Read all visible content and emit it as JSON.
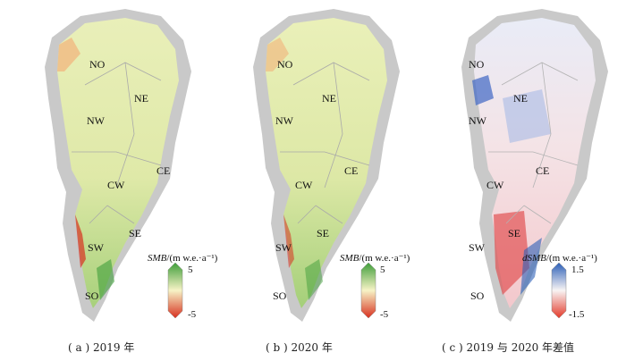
{
  "panels": [
    {
      "caption": "( a ) 2019 年",
      "regions": [
        "NO",
        "NE",
        "NW",
        "CE",
        "CW",
        "SE",
        "SW",
        "SO"
      ],
      "colorbar": {
        "var": "SMB",
        "unit": "/(m w.e.·a⁻¹)",
        "max": "5",
        "min": "-5",
        "top_color": "#3f9e3a",
        "bottom_color": "#d7301f"
      }
    },
    {
      "caption": "( b ) 2020 年",
      "regions": [
        "NO",
        "NE",
        "NW",
        "CE",
        "CW",
        "SE",
        "SW",
        "SO"
      ],
      "colorbar": {
        "var": "SMB",
        "unit": "/(m w.e.·a⁻¹)",
        "max": "5",
        "min": "-5",
        "top_color": "#3f9e3a",
        "bottom_color": "#d7301f"
      }
    },
    {
      "caption": "( c ) 2019 与 2020 年差值",
      "regions": [
        "NO",
        "NE",
        "NW",
        "CE",
        "CW",
        "SE",
        "SW",
        "SO"
      ],
      "colorbar": {
        "var": "dSMB",
        "unit": "/(m w.e.·a⁻¹)",
        "max": "1.5",
        "min": "-1.5",
        "top_color": "#2c5fb8",
        "bottom_color": "#e33a2a"
      }
    }
  ],
  "colors": {
    "land_gray": "#c9c9c9",
    "smb_fill": "#e9efb9",
    "smb_green": "#a7d07b",
    "diff_fill": "#f3dfe3",
    "diff_blue": "#a9bbe6",
    "diff_red": "#e0484a"
  }
}
